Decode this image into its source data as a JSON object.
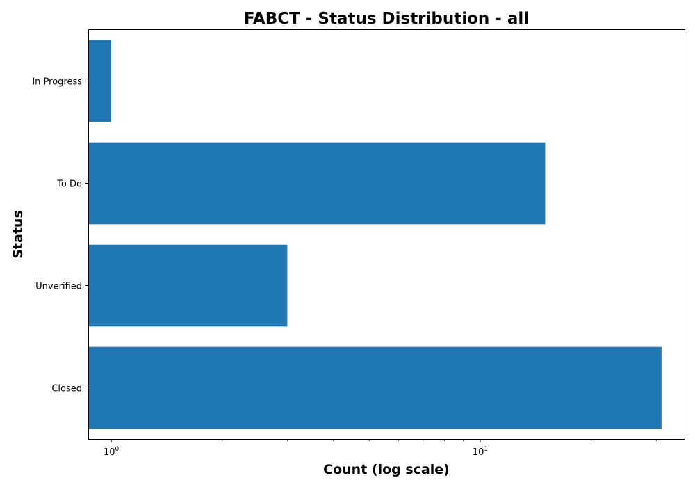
{
  "chart_data": {
    "type": "bar",
    "orientation": "horizontal",
    "title": "FABCT - Status Distribution - all",
    "xlabel": "Count (log scale)",
    "ylabel": "Status",
    "xscale": "log",
    "xlim": [
      0.87,
      35.8
    ],
    "categories": [
      "In Progress",
      "To Do",
      "Unverified",
      "Closed"
    ],
    "values": [
      1,
      15,
      3,
      31
    ],
    "xticks": [
      {
        "value": 1,
        "base": "10",
        "exp": "0"
      },
      {
        "value": 10,
        "base": "10",
        "exp": "1"
      }
    ],
    "minor_ticks": [
      2,
      3,
      4,
      5,
      6,
      7,
      8,
      9,
      20,
      30
    ],
    "bar_color": "#1f77b4",
    "grid": false,
    "legend": "none"
  }
}
